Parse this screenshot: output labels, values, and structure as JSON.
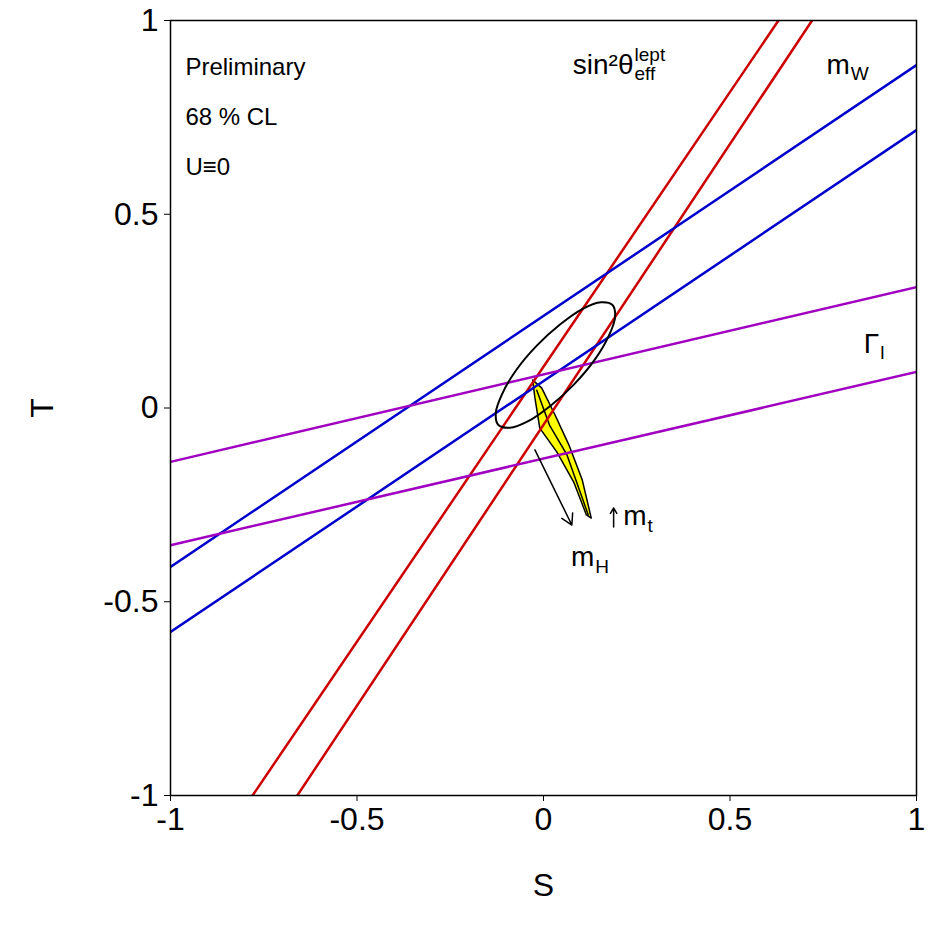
{
  "chart_data": {
    "type": "line",
    "xlabel": "S",
    "ylabel": "T",
    "xlim": [
      -1,
      1
    ],
    "ylim": [
      -1,
      1
    ],
    "xticks": [
      -1,
      -0.5,
      0,
      0.5,
      1
    ],
    "yticks": [
      -1,
      -0.5,
      0,
      0.5,
      1
    ],
    "grid": false,
    "annotations": [
      {
        "text": "Preliminary",
        "x": -0.96,
        "y": 0.88
      },
      {
        "text": "68 % CL",
        "x": -0.96,
        "y": 0.75
      },
      {
        "text": "U≡0",
        "x": -0.96,
        "y": 0.62
      }
    ],
    "bands": [
      {
        "label": {
          "text": "sin²θ",
          "sub": "eff",
          "sup": "lept"
        },
        "label_x": 0.08,
        "label_y": 0.88,
        "color": "#cc0000",
        "lines": [
          {
            "x": [
              -0.78,
              0.63
            ],
            "y": [
              -1,
              1
            ]
          },
          {
            "x": [
              -0.66,
              0.72
            ],
            "y": [
              -1,
              1
            ]
          }
        ]
      },
      {
        "label": {
          "text": "m",
          "sub": "W"
        },
        "label_x": 0.76,
        "label_y": 0.88,
        "color": "#0000cc",
        "lines": [
          {
            "x": [
              -1,
              1
            ],
            "y": [
              -0.41,
              0.885
            ]
          },
          {
            "x": [
              -1,
              1
            ],
            "y": [
              -0.578,
              0.717
            ]
          }
        ]
      },
      {
        "label": {
          "text": "Γ",
          "sub": "l"
        },
        "label_x": 0.86,
        "label_y": 0.16,
        "color": "#a000c0",
        "lines": [
          {
            "x": [
              -1,
              1
            ],
            "y": [
              -0.139,
              0.312
            ]
          },
          {
            "x": [
              -1,
              1
            ],
            "y": [
              -0.354,
              0.093
            ]
          }
        ]
      }
    ],
    "ellipse": {
      "color": "#000000",
      "x": [
        0.185,
        0.154,
        0.105,
        0.045,
        -0.018,
        -0.073,
        -0.111,
        -0.128,
        -0.121,
        -0.09,
        -0.041,
        0.019,
        0.082,
        0.137,
        0.175,
        0.192
      ],
      "y": [
        0.266,
        0.273,
        0.256,
        0.216,
        0.161,
        0.098,
        0.036,
        -0.013,
        -0.044,
        -0.051,
        -0.034,
        0.006,
        0.061,
        0.124,
        0.186,
        0.235
      ]
    },
    "sm_region": {
      "color": "#ffff00",
      "x": [
        -0.005,
        0.031,
        0.068,
        0.104,
        0.128,
        0.115,
        0.081,
        0.036,
        -0.01,
        -0.023,
        -0.029
      ],
      "y": [
        0.052,
        -0.018,
        -0.095,
        -0.186,
        -0.284,
        -0.276,
        -0.191,
        -0.114,
        -0.052,
        0.026,
        0.072
      ],
      "center_line": {
        "x": [
          -0.018,
          0.016,
          0.063,
          0.12
        ],
        "y": [
          0.046,
          -0.044,
          -0.121,
          -0.276
        ]
      }
    },
    "arrows": [
      {
        "x": [
          -0.023,
          0.076
        ],
        "y": [
          -0.108,
          -0.302
        ],
        "label": {
          "text": "m",
          "sub": "H"
        },
        "label_x": 0.075,
        "label_y": -0.39
      },
      {
        "x": [
          0.188,
          0.188
        ],
        "y": [
          -0.307,
          -0.258
        ],
        "label": {
          "text": "m",
          "sub": "t"
        },
        "label_x": 0.215,
        "label_y": -0.285
      }
    ]
  }
}
